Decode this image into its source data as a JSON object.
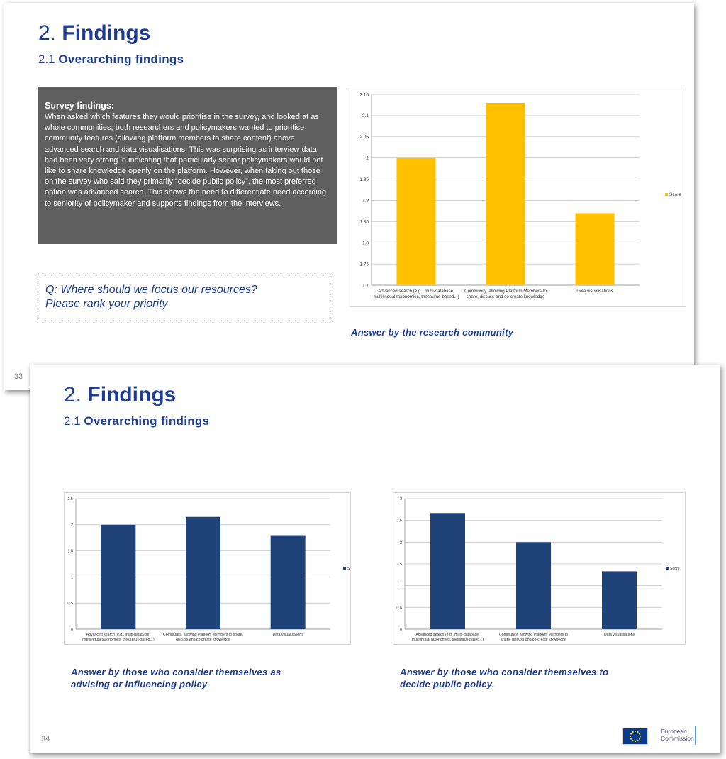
{
  "slide1": {
    "title_num": "2.",
    "title_word": "Findings",
    "sub_num": "2.1",
    "sub_word": "Overarching  findings",
    "page_number": "33",
    "survey": {
      "heading": "Survey findings:",
      "body": "When asked which features they would prioritise in the survey, and looked at as whole communities, both researchers and policymakers wanted to prioritise community features (allowing platform members to share content) above advanced search and data visualisations. This was surprising as interview data had been very strong in indicating that particularly senior policymakers would not like to share knowledge openly on the platform. However, when taking out those on the survey who said they primarily “decide public policy”, the most preferred option was advanced search. This shows the need to differentiate need according to seniority of policymaker and supports findings from the interviews."
    },
    "question": {
      "line1": "Q: Where should we focus our resources?",
      "line2": "Please rank your priority"
    },
    "caption": "Answer  by the research community"
  },
  "slide2": {
    "title_num": "2.",
    "title_word": "Findings",
    "sub_num": "2.1",
    "sub_word": "Overarching  findings",
    "page_number": "34",
    "caption_left_1": "Answer  by those who consider themselves as",
    "caption_left_2": "advising or influencing  policy",
    "caption_right_1": "Answer  by those who consider themselves to",
    "caption_right_2": "decide public policy.",
    "logo": {
      "line1": "European",
      "line2": "Commission"
    }
  },
  "chart_data": [
    {
      "type": "bar",
      "categories": [
        [
          "Advanced search (e.g., multi-database,",
          "multilingual taxonomies, thesaurus-based...)"
        ],
        [
          "Community, allowing Platform Members to",
          "share, discuss and co-create knowledge"
        ],
        [
          "Data visualisations"
        ]
      ],
      "series": [
        {
          "name": "Score",
          "values": [
            2.0,
            2.13,
            1.87
          ],
          "color": "#ffc000"
        }
      ],
      "ylim": [
        1.7,
        2.15
      ],
      "yticks": [
        1.7,
        1.75,
        1.8,
        1.85,
        1.9,
        1.95,
        2,
        2.05,
        2.1,
        2.15
      ],
      "grid": true,
      "legend": "right"
    },
    {
      "type": "bar",
      "categories": [
        [
          "Advanced search (e.g., multi-database,",
          "multilingual taxonomies, thesaurus-based...)"
        ],
        [
          "Community, allowing Platform Members to share,",
          "discuss and co-create knowledge"
        ],
        [
          "Data visualisations"
        ]
      ],
      "series": [
        {
          "name": "Score",
          "values": [
            2.0,
            2.15,
            1.8
          ],
          "color": "#1f4279"
        }
      ],
      "ylim": [
        0,
        2.5
      ],
      "yticks": [
        0,
        0.5,
        1,
        1.5,
        2,
        2.5
      ],
      "grid": true,
      "legend": "right"
    },
    {
      "type": "bar",
      "categories": [
        [
          "Advanced search (e.g., multi-database,",
          "multilingual taxonomies, thesaurus-based...)"
        ],
        [
          "Community, allowing Platform Members to",
          "share, discuss and co-create knowledge"
        ],
        [
          "Data visualisations"
        ]
      ],
      "series": [
        {
          "name": "Score",
          "values": [
            2.67,
            2.0,
            1.33
          ],
          "color": "#1f4279"
        }
      ],
      "ylim": [
        0,
        3
      ],
      "yticks": [
        0,
        0.5,
        1,
        1.5,
        2,
        2.5,
        3
      ],
      "grid": true,
      "legend": "right"
    }
  ]
}
